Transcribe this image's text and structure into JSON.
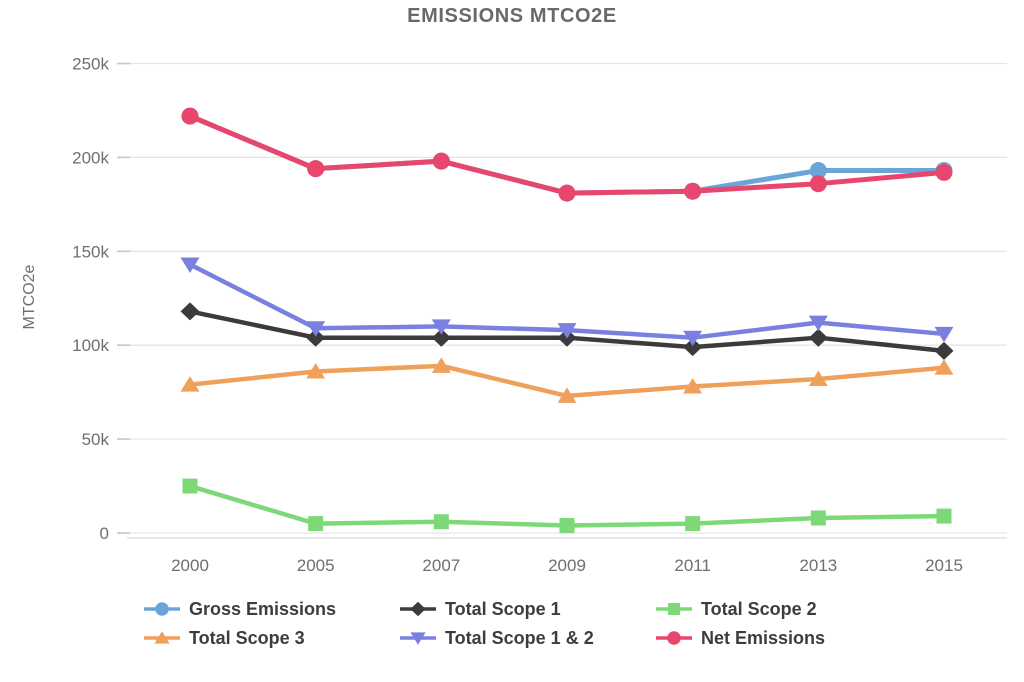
{
  "page": {
    "background": "#ffffff"
  },
  "chart_data": {
    "type": "line",
    "title": "EMISSIONS MTCO2E",
    "xlabel": "",
    "ylabel": "MTCO2e",
    "unit": "MTCO2e",
    "categories": [
      "2000",
      "2005",
      "2007",
      "2009",
      "2011",
      "2013",
      "2015"
    ],
    "ylim": [
      0,
      250000
    ],
    "grid": true,
    "legend_position": "bottom",
    "yticks": [
      {
        "value": 0,
        "label": "0"
      },
      {
        "value": 50000,
        "label": "50k"
      },
      {
        "value": 100000,
        "label": "100k"
      },
      {
        "value": 150000,
        "label": "150k"
      },
      {
        "value": 200000,
        "label": "200k"
      },
      {
        "value": 250000,
        "label": "250k"
      }
    ],
    "series": [
      {
        "id": "gross-emissions",
        "name": "Gross Emissions",
        "color": "#6BA5D8",
        "marker": "circle",
        "values": [
          222000,
          194000,
          198000,
          181000,
          182000,
          193000,
          193000
        ]
      },
      {
        "id": "total-scope-1",
        "name": "Total Scope 1",
        "color": "#3B3B3B",
        "marker": "diamond",
        "values": [
          118000,
          104000,
          104000,
          104000,
          99000,
          104000,
          97000
        ]
      },
      {
        "id": "total-scope-2",
        "name": "Total Scope 2",
        "color": "#7DD878",
        "marker": "square",
        "values": [
          25000,
          5000,
          6000,
          4000,
          5000,
          8000,
          9000
        ]
      },
      {
        "id": "total-scope-3",
        "name": "Total Scope 3",
        "color": "#EFA15C",
        "marker": "triangle-up",
        "values": [
          79000,
          86000,
          89000,
          73000,
          78000,
          82000,
          88000
        ]
      },
      {
        "id": "total-scope-1-2",
        "name": "Total Scope 1 & 2",
        "color": "#7A80DF",
        "marker": "triangle-down",
        "values": [
          143000,
          109000,
          110000,
          108000,
          104000,
          112000,
          106000
        ]
      },
      {
        "id": "net-emissions",
        "name": "Net Emissions",
        "color": "#E8476D",
        "marker": "circle",
        "values": [
          222000,
          194000,
          198000,
          181000,
          182000,
          186000,
          192000
        ]
      }
    ],
    "draw_order": [
      0,
      2,
      3,
      1,
      4,
      5
    ],
    "colors": {
      "grid": "#E5E5E5",
      "axis_line": "#D9D9D9",
      "tick": "#C9C9C9",
      "tick_text": "#6F6F6F",
      "title_text": "#696969",
      "legend_text": "#3D3D3D"
    }
  }
}
